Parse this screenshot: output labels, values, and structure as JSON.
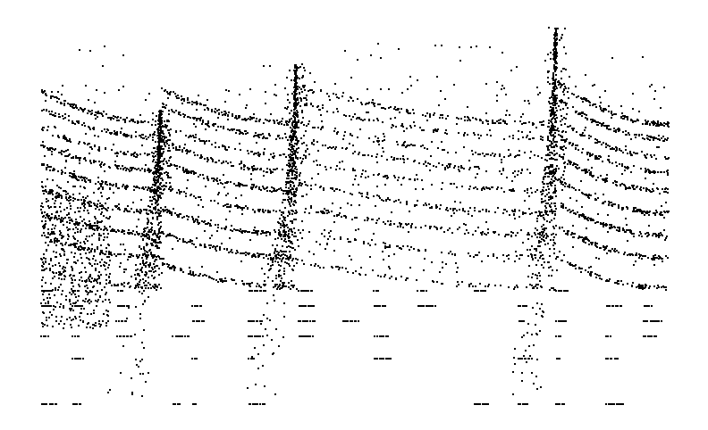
{
  "chart_data": {
    "type": "scatter",
    "title": "",
    "xlabel": "",
    "ylabel": "",
    "axes_visible": false,
    "grid": false,
    "legend": "none",
    "marker_color": "#000000",
    "background_color": "#ffffff",
    "marker_size_px": 2,
    "xlim": [
      0,
      1
    ],
    "ylim": [
      0,
      1
    ],
    "pattern": {
      "segments": [
        [
          0.0,
          0.192
        ],
        [
          0.192,
          0.408
        ],
        [
          0.408,
          0.822
        ],
        [
          0.822,
          1.0
        ]
      ],
      "curve_levels": [
        0.32,
        0.4,
        0.46,
        0.52,
        0.58,
        0.63,
        0.67,
        0.72,
        0.76
      ],
      "sparse_levels": [
        0.0,
        0.12,
        0.18,
        0.22,
        0.26,
        0.3
      ],
      "sparse_x_clusters": [
        0.0,
        0.05,
        0.12,
        0.21,
        0.24,
        0.33,
        0.41,
        0.48,
        0.53,
        0.6,
        0.69,
        0.76,
        0.82,
        0.9,
        0.96
      ],
      "spire_positions": [
        0.192,
        0.408,
        0.822
      ],
      "spire_heights": [
        0.78,
        0.9,
        1.0
      ]
    },
    "random_seed": 271828
  }
}
